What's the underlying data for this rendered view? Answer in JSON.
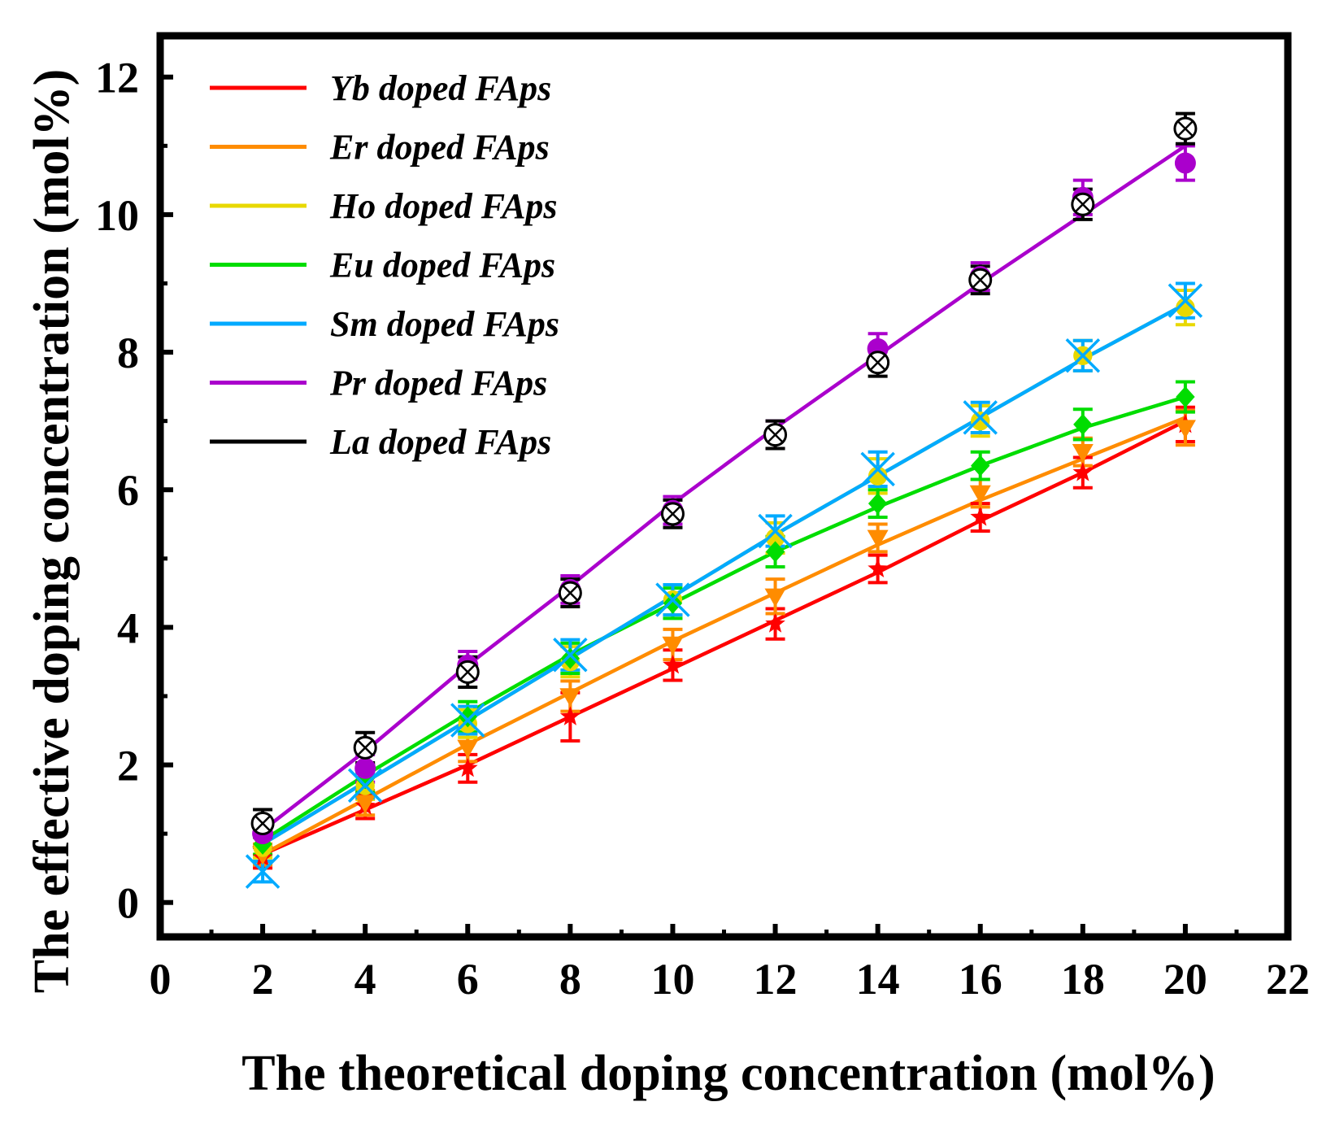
{
  "chart_data": {
    "type": "line",
    "title": "",
    "xlabel": "The theoretical doping concentration (mol%)",
    "ylabel": "The effective doping concentration (mol%)",
    "xlim": [
      0,
      22
    ],
    "ylim": [
      -0.5,
      12.6
    ],
    "xticks": [
      0,
      2,
      4,
      6,
      8,
      10,
      12,
      14,
      16,
      18,
      20,
      22
    ],
    "yticks": [
      0,
      2,
      4,
      6,
      8,
      10,
      12
    ],
    "xtick_labels": [
      "0",
      "2",
      "4",
      "6",
      "8",
      "10",
      "12",
      "14",
      "16",
      "18",
      "20",
      "22"
    ],
    "ytick_labels": [
      "0",
      "2",
      "4",
      "6",
      "8",
      "10",
      "12"
    ],
    "legend_position": "top-left",
    "x": [
      2,
      4,
      6,
      8,
      10,
      12,
      14,
      16,
      18,
      20
    ],
    "series": [
      {
        "name": "Yb doped FAps",
        "color": "#ff0000",
        "marker": "star",
        "fit": [
          0.7,
          1.35,
          2.0,
          2.7,
          3.4,
          4.1,
          4.8,
          5.55,
          6.25,
          7.0
        ],
        "values": [
          0.65,
          1.4,
          1.95,
          2.7,
          3.45,
          4.05,
          4.85,
          5.6,
          6.25,
          6.95
        ],
        "errors": [
          0.15,
          0.18,
          0.2,
          0.35,
          0.22,
          0.22,
          0.2,
          0.2,
          0.22,
          0.25
        ]
      },
      {
        "name": "Er doped FAps",
        "color": "#ff8c00",
        "marker": "triangle-down",
        "fit": [
          0.7,
          1.5,
          2.3,
          3.05,
          3.8,
          4.5,
          5.2,
          5.85,
          6.45,
          7.05
        ],
        "values": [
          0.7,
          1.45,
          2.25,
          3.0,
          3.75,
          4.45,
          5.3,
          5.95,
          6.55,
          6.9
        ],
        "errors": [
          0.15,
          0.18,
          0.2,
          0.22,
          0.22,
          0.25,
          0.2,
          0.2,
          0.2,
          0.25
        ]
      },
      {
        "name": "Ho doped FAps",
        "color": "#e8d800",
        "marker": "circle",
        "fit": [
          0.85,
          1.75,
          2.65,
          3.55,
          4.45,
          5.35,
          6.2,
          7.05,
          7.9,
          8.7
        ],
        "values": [
          0.8,
          1.7,
          2.6,
          3.5,
          4.4,
          5.3,
          6.2,
          7.0,
          7.95,
          8.65
        ],
        "errors": [
          0.15,
          0.2,
          0.2,
          0.22,
          0.22,
          0.22,
          0.25,
          0.22,
          0.22,
          0.25
        ]
      },
      {
        "name": "Eu doped FAps",
        "color": "#00dd00",
        "marker": "diamond",
        "fit": [
          0.9,
          1.85,
          2.75,
          3.6,
          4.35,
          5.1,
          5.75,
          6.35,
          6.9,
          7.35
        ],
        "values": [
          0.85,
          1.8,
          2.7,
          3.55,
          4.35,
          5.1,
          5.8,
          6.35,
          6.95,
          7.35
        ],
        "errors": [
          0.15,
          0.2,
          0.22,
          0.22,
          0.22,
          0.22,
          0.2,
          0.2,
          0.22,
          0.22
        ]
      },
      {
        "name": "Sm doped FAps",
        "color": "#00aaff",
        "marker": "x-hourglass",
        "fit": [
          0.85,
          1.75,
          2.65,
          3.55,
          4.45,
          5.35,
          6.2,
          7.05,
          7.9,
          8.7
        ],
        "values": [
          0.45,
          1.7,
          2.65,
          3.6,
          4.4,
          5.4,
          6.3,
          7.05,
          7.95,
          8.75
        ],
        "errors": [
          0.15,
          0.18,
          0.2,
          0.22,
          0.22,
          0.22,
          0.25,
          0.22,
          0.22,
          0.25
        ]
      },
      {
        "name": "Pr doped FAps",
        "color": "#aa00cc",
        "marker": "sphere",
        "fit": [
          1.05,
          2.2,
          3.45,
          4.6,
          5.8,
          6.9,
          7.95,
          9.0,
          10.0,
          11.0
        ],
        "values": [
          1.0,
          1.95,
          3.45,
          4.55,
          5.7,
          6.8,
          8.05,
          9.1,
          10.25,
          10.75
        ],
        "errors": [
          0.2,
          0.2,
          0.2,
          0.2,
          0.2,
          0.2,
          0.22,
          0.2,
          0.25,
          0.25
        ]
      },
      {
        "name": "La doped FAps",
        "color": "#000000",
        "marker": "circle-x",
        "fit": [],
        "values": [
          1.15,
          2.25,
          3.35,
          4.5,
          5.65,
          6.8,
          7.85,
          9.05,
          10.15,
          11.25
        ],
        "errors": [
          0.2,
          0.22,
          0.22,
          0.2,
          0.2,
          0.2,
          0.2,
          0.2,
          0.22,
          0.22
        ]
      }
    ]
  }
}
